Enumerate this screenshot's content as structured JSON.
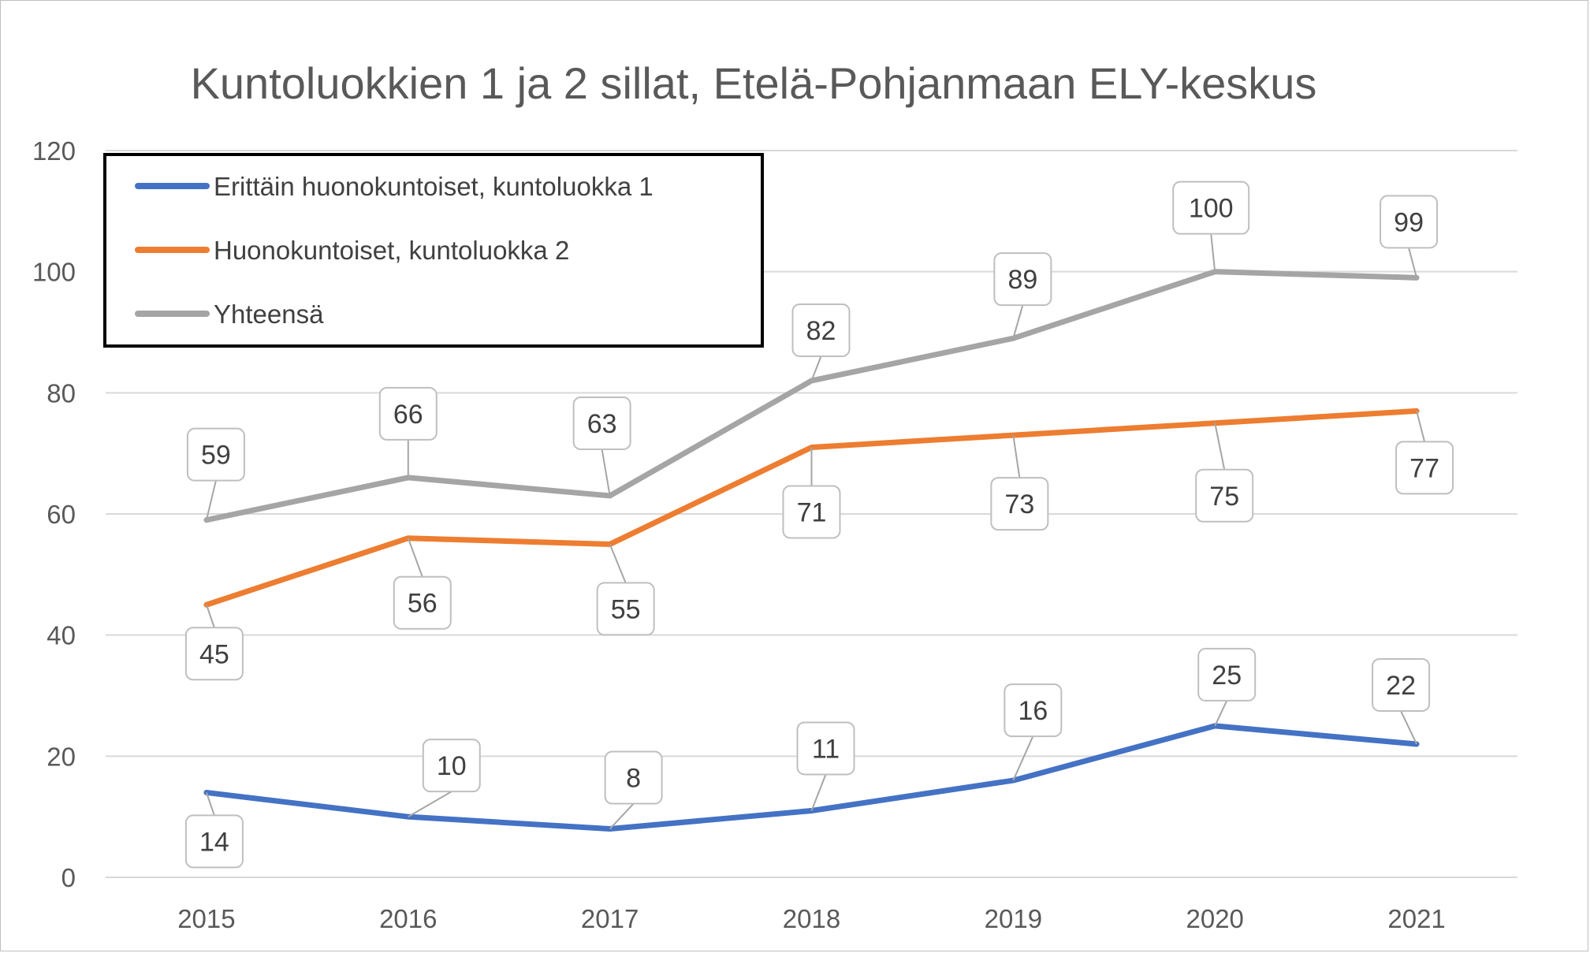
{
  "chart_data": {
    "type": "line",
    "title": "Kuntoluokkien 1 ja 2 sillat, Etelä-Pohjanmaan ELY-keskus",
    "xlabel": "",
    "ylabel": "",
    "x": [
      "2015",
      "2016",
      "2017",
      "2018",
      "2019",
      "2020",
      "2021"
    ],
    "ylim": [
      0,
      120
    ],
    "yticks": [
      0,
      20,
      40,
      60,
      80,
      100,
      120
    ],
    "grid": true,
    "legend_position": "top-left",
    "series": [
      {
        "name": "Erittäin huonokuntoiset, kuntoluokka 1",
        "color": "#4472C4",
        "values": [
          14,
          10,
          8,
          11,
          16,
          25,
          22
        ]
      },
      {
        "name": "Huonokuntoiset, kuntoluokka 2",
        "color": "#ED7D31",
        "values": [
          45,
          56,
          55,
          71,
          73,
          75,
          77
        ]
      },
      {
        "name": "Yhteensä",
        "color": "#A5A5A5",
        "values": [
          59,
          66,
          63,
          82,
          89,
          100,
          99
        ]
      }
    ]
  }
}
